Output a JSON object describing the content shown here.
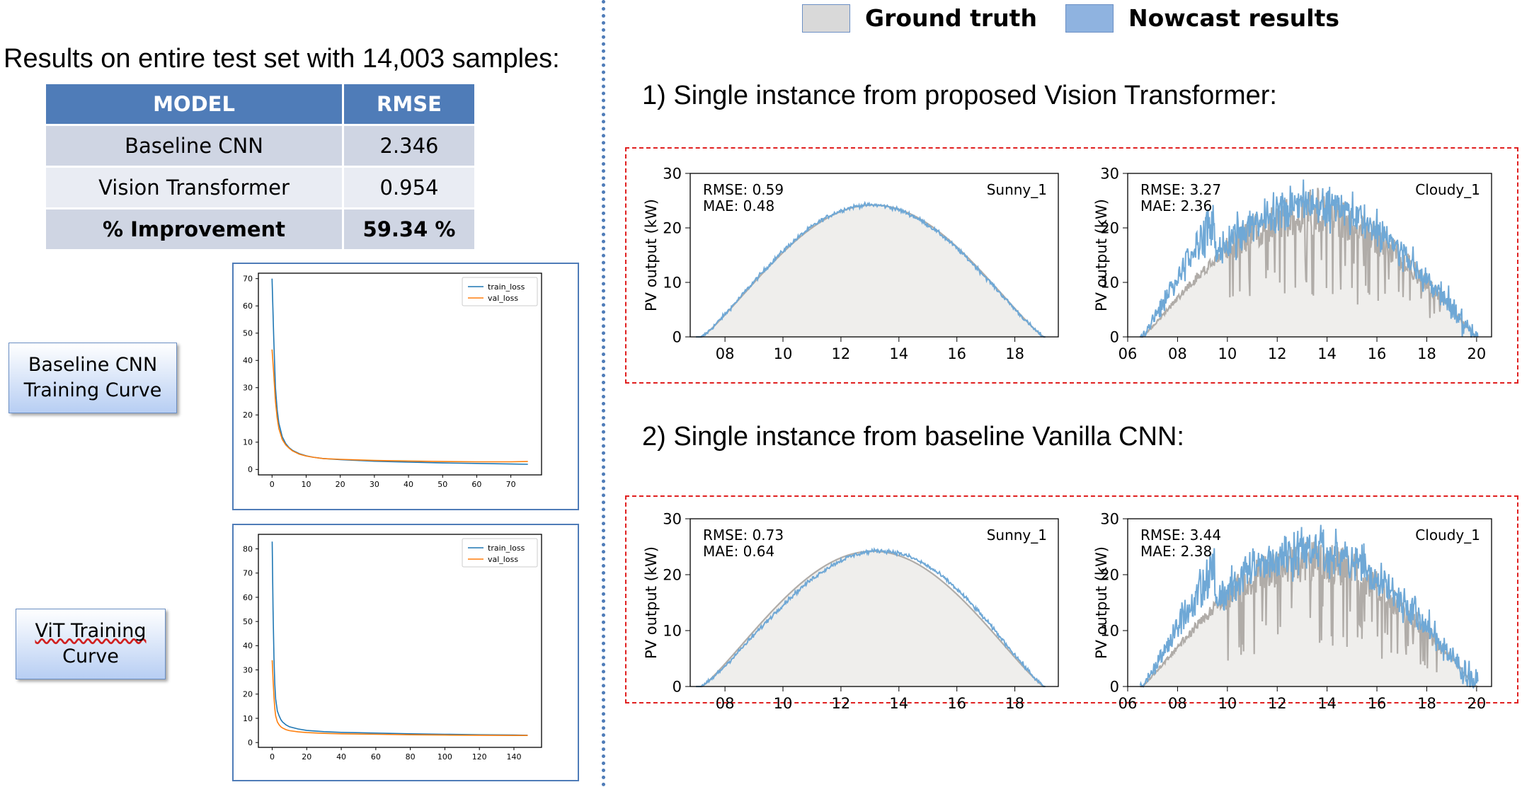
{
  "left": {
    "heading": "Results on entire test set with 14,003 samples:",
    "table": {
      "headers": [
        "MODEL",
        "RMSE"
      ],
      "rows": [
        [
          "Baseline CNN",
          "2.346"
        ],
        [
          "Vision Transformer",
          "0.954"
        ],
        [
          "% Improvement",
          "59.34 %"
        ]
      ]
    },
    "label_cnn_curve": [
      "Baseline CNN",
      "Training Curve"
    ],
    "label_vit_curve": [
      "ViT Training",
      "Curve"
    ]
  },
  "right": {
    "legend": [
      {
        "label": "Ground truth",
        "color": "#d9d9d9"
      },
      {
        "label": "Nowcast results",
        "color": "#8fb3e0"
      }
    ],
    "section1_title": "1) Single instance from proposed Vision Transformer:",
    "section2_title": "2) Single instance from baseline Vanilla CNN:"
  },
  "colors": {
    "nowcast": "#6fa8d6",
    "truth": "#b0aca8",
    "truth_fill": "#efeeec",
    "train": "#1f77b4",
    "val": "#ff7f0e"
  },
  "chart_data": [
    {
      "id": "cnn_train",
      "type": "line",
      "series": [
        {
          "name": "train_loss",
          "color": "#1f77b4",
          "x": [
            0,
            0.5,
            1,
            1.5,
            2,
            3,
            4,
            5,
            6,
            8,
            10,
            12,
            15,
            20,
            25,
            30,
            40,
            50,
            60,
            70,
            75
          ],
          "y": [
            70,
            48,
            30,
            22,
            17,
            12,
            9.5,
            8,
            7,
            5.8,
            5,
            4.5,
            4,
            3.6,
            3.3,
            3,
            2.7,
            2.4,
            2.2,
            2.0,
            1.9
          ]
        },
        {
          "name": "val_loss",
          "color": "#ff7f0e",
          "x": [
            0,
            0.5,
            1,
            1.5,
            2,
            3,
            4,
            5,
            6,
            8,
            10,
            12,
            15,
            20,
            25,
            30,
            40,
            50,
            60,
            70,
            75
          ],
          "y": [
            44,
            35,
            25,
            19,
            15,
            11,
            9,
            7.8,
            6.8,
            5.6,
            4.9,
            4.5,
            4,
            3.7,
            3.5,
            3.3,
            3.1,
            2.9,
            2.8,
            2.8,
            2.9
          ]
        }
      ],
      "xlim": [
        -4,
        79
      ],
      "ylim": [
        -2,
        72
      ],
      "xticks": [
        0,
        10,
        20,
        30,
        40,
        50,
        60,
        70
      ],
      "yticks": [
        0,
        10,
        20,
        30,
        40,
        50,
        60,
        70
      ]
    },
    {
      "id": "vit_train",
      "type": "line",
      "series": [
        {
          "name": "train_loss",
          "color": "#1f77b4",
          "x": [
            0,
            0.5,
            1,
            1.5,
            2,
            3,
            4,
            5,
            6,
            8,
            10,
            15,
            20,
            30,
            40,
            60,
            80,
            100,
            120,
            140,
            148
          ],
          "y": [
            83,
            55,
            35,
            24,
            18,
            13,
            11,
            9.5,
            8.5,
            7.3,
            6.5,
            5.6,
            5,
            4.5,
            4.2,
            3.9,
            3.6,
            3.4,
            3.2,
            3.1,
            3.0
          ]
        },
        {
          "name": "val_loss",
          "color": "#ff7f0e",
          "x": [
            0,
            0.5,
            1,
            1.5,
            2,
            3,
            4,
            5,
            6,
            8,
            10,
            15,
            20,
            30,
            40,
            60,
            80,
            100,
            120,
            140,
            148
          ],
          "y": [
            34,
            26,
            19,
            14,
            11,
            8.5,
            7.3,
            6.5,
            6,
            5.3,
            4.9,
            4.4,
            4.1,
            3.8,
            3.6,
            3.4,
            3.2,
            3.1,
            3.0,
            2.9,
            2.9
          ]
        }
      ],
      "xlim": [
        -8,
        156
      ],
      "ylim": [
        -2,
        86
      ],
      "xticks": [
        0,
        20,
        40,
        60,
        80,
        100,
        120,
        140
      ],
      "yticks": [
        0,
        10,
        20,
        30,
        40,
        50,
        60,
        70,
        80
      ]
    },
    {
      "id": "vit_sunny",
      "type": "area",
      "ylabel": "PV output (kW)",
      "rmse": "RMSE: 0.59",
      "mae": "MAE: 0.48",
      "tag": "Sunny_1",
      "xlim": [
        6.8,
        19.5
      ],
      "ylim": [
        0,
        30
      ],
      "xticks": [
        8,
        10,
        12,
        14,
        16,
        18
      ],
      "xtick_labels": [
        "08",
        "10",
        "12",
        "14",
        "16",
        "18"
      ],
      "yticks": [
        0,
        10,
        20,
        30
      ]
    },
    {
      "id": "vit_cloudy",
      "type": "area",
      "ylabel": "PV output (kW)",
      "rmse": "RMSE: 3.27",
      "mae": "MAE: 2.36",
      "tag": "Cloudy_1",
      "xlim": [
        6,
        20.6
      ],
      "ylim": [
        0,
        30
      ],
      "xticks": [
        6,
        8,
        10,
        12,
        14,
        16,
        18,
        20
      ],
      "xtick_labels": [
        "06",
        "08",
        "10",
        "12",
        "14",
        "16",
        "18",
        "20"
      ],
      "yticks": [
        0,
        10,
        20,
        30
      ]
    },
    {
      "id": "cnn_sunny",
      "type": "area",
      "ylabel": "PV output (kW)",
      "rmse": "RMSE: 0.73",
      "mae": "MAE: 0.64",
      "tag": "Sunny_1",
      "xlim": [
        6.8,
        19.5
      ],
      "ylim": [
        0,
        30
      ],
      "xticks": [
        8,
        10,
        12,
        14,
        16,
        18
      ],
      "xtick_labels": [
        "08",
        "10",
        "12",
        "14",
        "16",
        "18"
      ],
      "yticks": [
        0,
        10,
        20,
        30
      ]
    },
    {
      "id": "cnn_cloudy",
      "type": "area",
      "ylabel": "PV output (kW)",
      "rmse": "RMSE: 3.44",
      "mae": "MAE: 2.38",
      "tag": "Cloudy_1",
      "xlim": [
        6,
        20.6
      ],
      "ylim": [
        0,
        30
      ],
      "xticks": [
        6,
        8,
        10,
        12,
        14,
        16,
        18,
        20
      ],
      "xtick_labels": [
        "06",
        "08",
        "10",
        "12",
        "14",
        "16",
        "18",
        "20"
      ],
      "yticks": [
        0,
        10,
        20,
        30
      ]
    }
  ]
}
